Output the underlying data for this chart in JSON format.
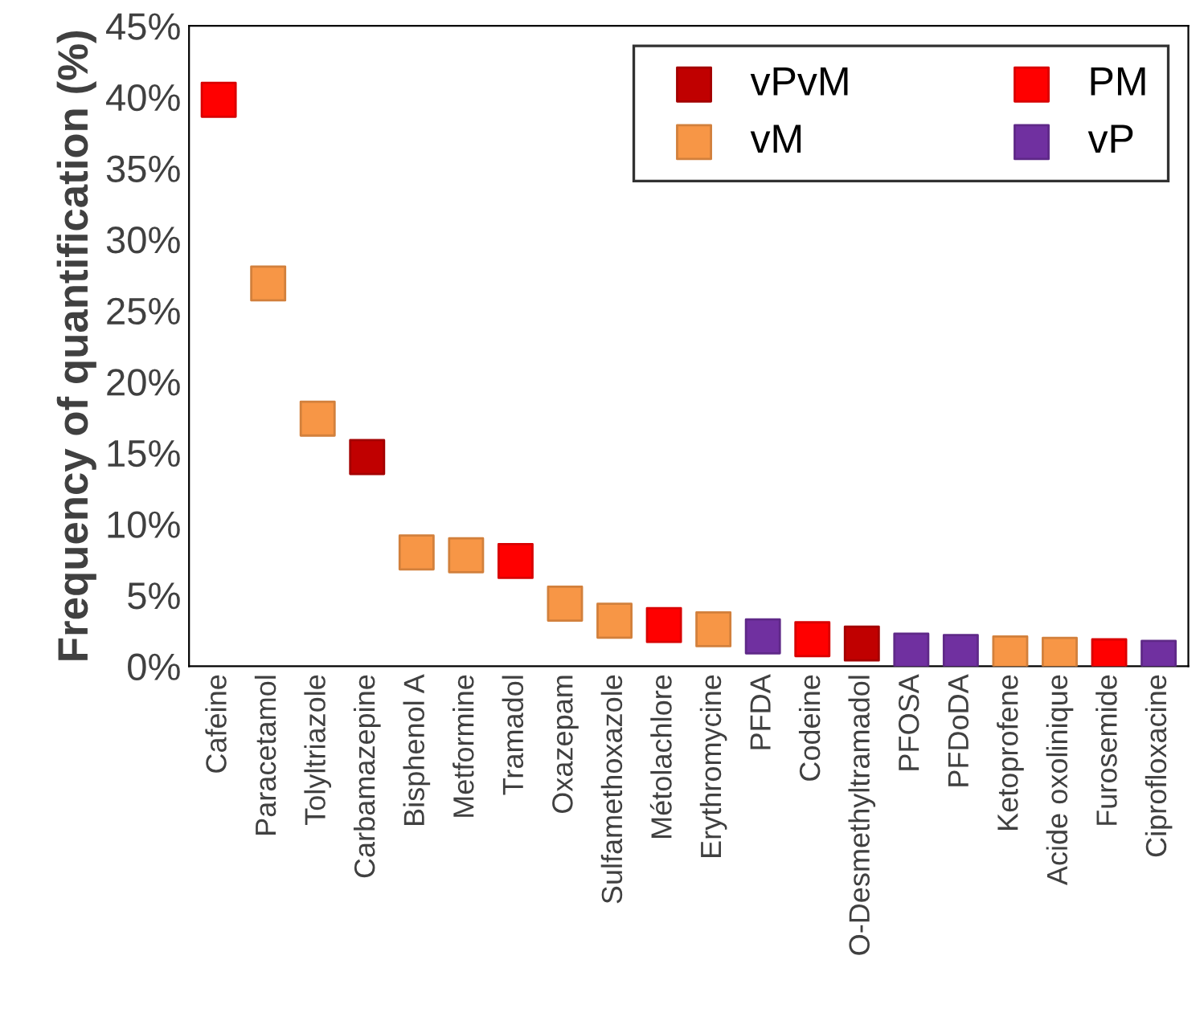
{
  "chart_data": {
    "type": "scatter",
    "ylabel": "Frequency of quantification (%)",
    "categories": [
      "Cafeine",
      "Paracetamol",
      "Tolyltriazole",
      "Carbamazepine",
      "Bisphenol A",
      "Metformine",
      "Tramadol",
      "Oxazepam",
      "Sulfamethoxazole",
      "Métolachlore",
      "Erythromycine",
      "PFDA",
      "Codeine",
      "O-Desmethyltramadol",
      "PFOSA",
      "PFDoDA",
      "Ketoprofene",
      "Acide oxolinique",
      "Furosemide",
      "Ciprofloxacine"
    ],
    "series": [
      {
        "name": "vPvM",
        "color": "#c00000",
        "x": [
          "Carbamazepine",
          "O-Desmethyltramadol"
        ],
        "values": [
          14.7,
          1.6
        ]
      },
      {
        "name": "vM",
        "color": "#f79646",
        "x": [
          "Paracetamol",
          "Tolyltriazole",
          "Bisphenol A",
          "Metformine",
          "Oxazepam",
          "Sulfamethoxazole",
          "Erythromycine",
          "Ketoprofene",
          "Acide oxolinique"
        ],
        "values": [
          26.9,
          17.4,
          8.0,
          7.8,
          4.4,
          3.2,
          2.6,
          0.9,
          0.8
        ]
      },
      {
        "name": "PM",
        "color": "#ff0000",
        "x": [
          "Cafeine",
          "Tramadol",
          "Métolachlore",
          "Codeine",
          "Furosemide"
        ],
        "values": [
          39.8,
          7.4,
          2.9,
          1.9,
          0.7
        ]
      },
      {
        "name": "vP",
        "color": "#7030a0",
        "x": [
          "PFDA",
          "PFOSA",
          "PFDoDA",
          "Ciprofloxacine"
        ],
        "values": [
          2.1,
          1.1,
          1.0,
          0.6
        ]
      }
    ],
    "ylim": [
      0,
      45
    ],
    "yticks": [
      {
        "value": 0,
        "label": "0%"
      },
      {
        "value": 5,
        "label": "5%"
      },
      {
        "value": 10,
        "label": "10%"
      },
      {
        "value": 15,
        "label": "15%"
      },
      {
        "value": 20,
        "label": "20%"
      },
      {
        "value": 25,
        "label": "25%"
      },
      {
        "value": 30,
        "label": "30%"
      },
      {
        "value": 35,
        "label": "35%"
      },
      {
        "value": 40,
        "label": "40%"
      },
      {
        "value": 45,
        "label": "45%"
      }
    ],
    "marker": "square",
    "legend": "top right",
    "grid": false
  }
}
